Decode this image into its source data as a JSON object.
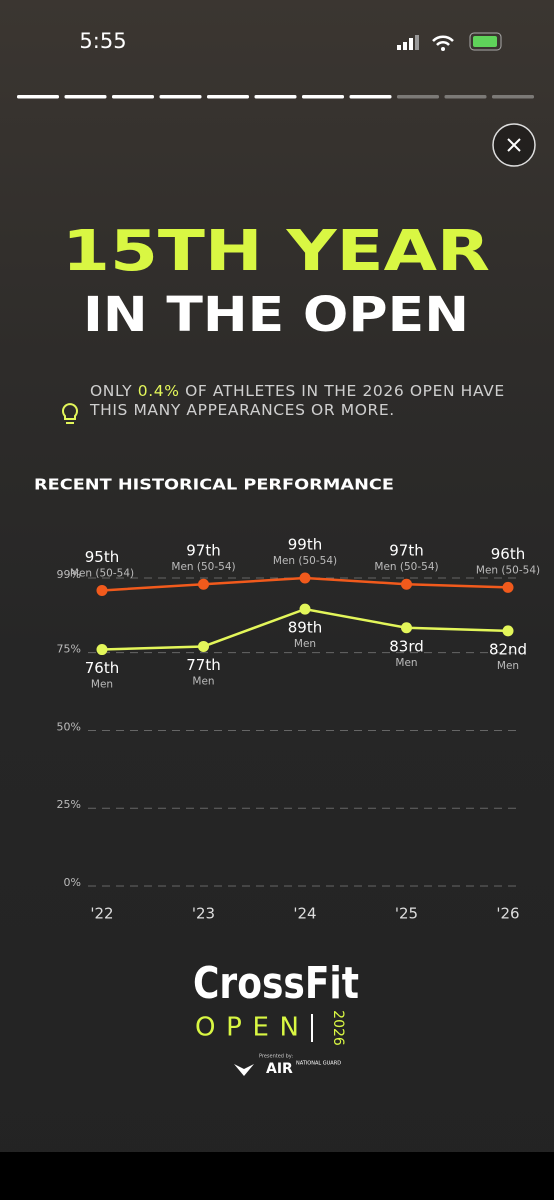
{
  "status_bar": {
    "time": "5:55"
  },
  "header": {
    "line1": "15TH YEAR",
    "line2": "IN THE OPEN"
  },
  "note": {
    "before": "ONLY ",
    "highlight": "0.4%",
    "after": " OF ATHLETES IN THE 2026 OPEN HAVE THIS MANY APPEARANCES OR MORE."
  },
  "chart_data": {
    "type": "line",
    "title": "RECENT HISTORICAL PERFORMANCE",
    "categories": [
      "'22",
      "'23",
      "'24",
      "'25",
      "'26"
    ],
    "ylim": [
      0,
      99
    ],
    "yticks": [
      {
        "value": 0,
        "label": "0%"
      },
      {
        "value": 25,
        "label": "25%"
      },
      {
        "value": 50,
        "label": "50%"
      },
      {
        "value": 75,
        "label": "75%"
      },
      {
        "value": 99,
        "label": "99%"
      }
    ],
    "grid": true,
    "series": [
      {
        "name": "Men (50-54)",
        "color": "#f15a1c",
        "values": [
          95,
          97,
          99,
          97,
          96
        ],
        "value_labels": [
          "95th",
          "97th",
          "99th",
          "97th",
          "96th"
        ]
      },
      {
        "name": "Men",
        "color": "#e3f65a",
        "values": [
          76,
          77,
          89,
          83,
          82
        ],
        "value_labels": [
          "76th",
          "77th",
          "89th",
          "83rd",
          "82nd"
        ]
      }
    ]
  },
  "logo": {
    "brand": "CrossFit",
    "event": "OPEN",
    "year": "2026",
    "presented": "Presented by:",
    "sponsor": "AIR",
    "sponsor_sub": "NATIONAL GUARD"
  }
}
